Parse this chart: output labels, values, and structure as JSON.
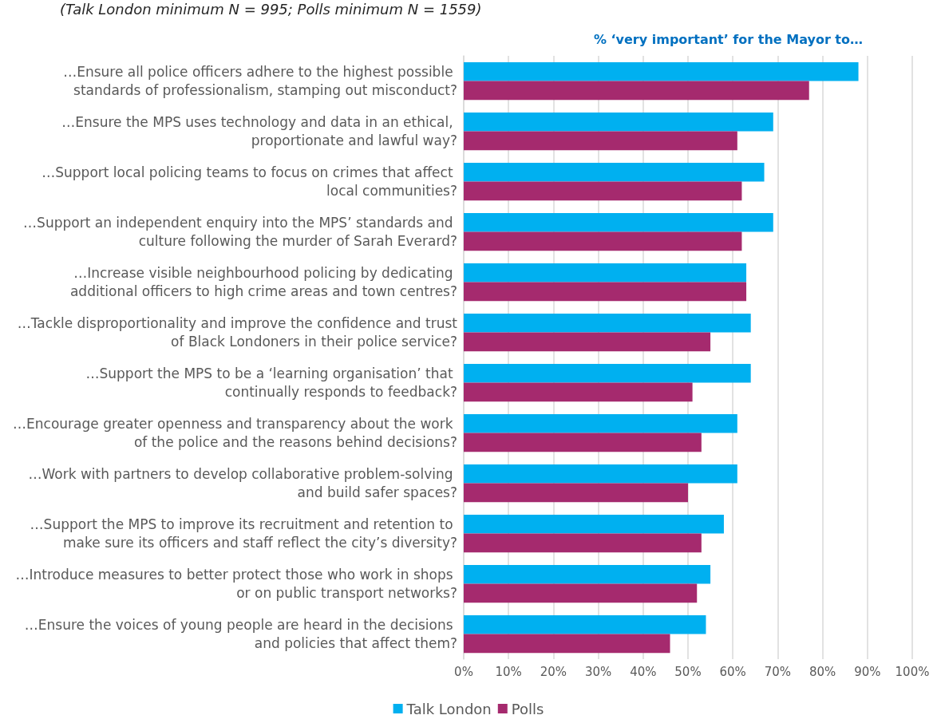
{
  "chart_data": {
    "type": "bar",
    "orientation": "horizontal",
    "title": "% ‘very important’ for the Mayor to…",
    "annotations": [
      "(Talk London minimum N = 995; Polls minimum N = 1559)"
    ],
    "categories": [
      "…Ensure all police officers adhere to the highest possible standards of professionalism, stamping out misconduct?",
      "…Ensure the MPS uses technology and data in an ethical, proportionate and lawful way?",
      "…Support local policing teams to focus on crimes that affect local communities?",
      "…Support an independent enquiry into the MPS’ standards and culture following the murder of Sarah Everard?",
      "…Increase visible neighbourhood policing by dedicating additional officers to high crime areas and town centres?",
      "…Tackle disproportionality and improve the confidence and trust of Black Londoners in their police service?",
      "…Support the MPS to be a ‘learning organisation’ that continually responds to feedback?",
      "…Encourage greater openness and transparency about the work of the police and the reasons behind decisions?",
      "…Work with partners to develop collaborative problem-solving and build safer spaces?",
      "…Support the MPS to improve its recruitment and retention to make sure its officers and staff reflect the city’s diversity?",
      "…Introduce measures to better protect those who work in shops or on public transport networks?",
      "…Ensure the voices of young people are heard in the decisions and policies that affect them?"
    ],
    "series": [
      {
        "name": "Talk London",
        "color": "#00b0f0",
        "values": [
          88,
          69,
          67,
          69,
          63,
          64,
          64,
          61,
          61,
          58,
          55,
          54
        ]
      },
      {
        "name": "Polls",
        "color": "#a52a6e",
        "values": [
          77,
          61,
          62,
          62,
          63,
          55,
          51,
          53,
          50,
          53,
          52,
          46
        ]
      }
    ],
    "xlim": [
      0,
      100
    ],
    "xticks": [
      {
        "value": 0,
        "label": "0%"
      },
      {
        "value": 10,
        "label": "10%"
      },
      {
        "value": 20,
        "label": "20%"
      },
      {
        "value": 30,
        "label": "30%"
      },
      {
        "value": 40,
        "label": "40%"
      },
      {
        "value": 50,
        "label": "50%"
      },
      {
        "value": 60,
        "label": "60%"
      },
      {
        "value": 70,
        "label": "70%"
      },
      {
        "value": 80,
        "label": "80%"
      },
      {
        "value": 90,
        "label": "90%"
      },
      {
        "value": 100,
        "label": "100%"
      }
    ],
    "grid": "x",
    "legend": "bottom"
  }
}
